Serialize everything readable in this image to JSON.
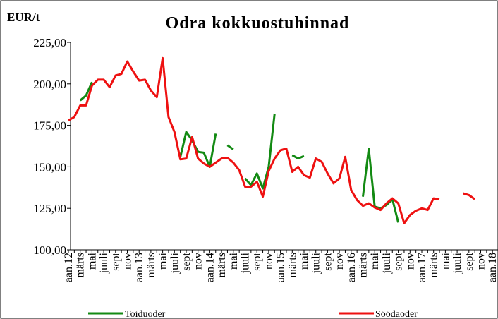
{
  "chart_data": {
    "type": "line",
    "title": "Odra kokkuostuhinnad",
    "y_label": "EUR/t",
    "categories": [
      "aan.12",
      null,
      "märts",
      null,
      "mai",
      null,
      "juuli",
      null,
      "sept",
      null,
      "nov",
      null,
      "aan.13",
      null,
      "märts",
      null,
      "mai",
      null,
      "juuli",
      null,
      "sept",
      null,
      "nov",
      null,
      "aan.14",
      null,
      "märts",
      null,
      "mai",
      null,
      "juuli",
      null,
      "sept",
      null,
      "nov",
      null,
      "aan.15",
      null,
      "märts",
      null,
      "mai",
      null,
      "juuli",
      null,
      "sept",
      null,
      "nov",
      null,
      "aan.16",
      null,
      "märts",
      null,
      "mai",
      null,
      "juuli",
      null,
      "sept",
      null,
      "nov",
      null,
      "aan.17",
      null,
      "märts",
      null,
      "mai",
      null,
      "juuli",
      null,
      "sept",
      null,
      "nov",
      null,
      "aan.18",
      null
    ],
    "series": [
      {
        "name": "Toiduoder",
        "color": "#138a13",
        "values": [
          null,
          null,
          190,
          193,
          201,
          null,
          null,
          null,
          null,
          null,
          null,
          null,
          null,
          null,
          null,
          null,
          null,
          null,
          null,
          156,
          171,
          166,
          159,
          158.5,
          150,
          170,
          null,
          163,
          160.5,
          null,
          143,
          139,
          146,
          137,
          150,
          182,
          null,
          null,
          157,
          155,
          156.5,
          null,
          null,
          null,
          null,
          null,
          null,
          null,
          null,
          null,
          132,
          161,
          126,
          125,
          127,
          130.5,
          116.5,
          null,
          null,
          null,
          null,
          null,
          null,
          null,
          null,
          null,
          null,
          null,
          null,
          null,
          null,
          null,
          null,
          null
        ]
      },
      {
        "name": "Söödaoder",
        "color": "#ee1111",
        "values": [
          178,
          180,
          187,
          187,
          199,
          202.5,
          202.5,
          198,
          205,
          206,
          213.5,
          207.5,
          202,
          202.5,
          196,
          192,
          215.5,
          180,
          171,
          154.5,
          155,
          168,
          155,
          152,
          150,
          152.5,
          155,
          155.5,
          152.5,
          148,
          138,
          138,
          141,
          132,
          147.5,
          155,
          160,
          161,
          147,
          150,
          145,
          143.5,
          155,
          153,
          146,
          140,
          143,
          156,
          136,
          130,
          126.5,
          128,
          125.5,
          124,
          128,
          131,
          128,
          116,
          121,
          123.5,
          125,
          124,
          131,
          130.5,
          null,
          null,
          null,
          134,
          133,
          130.5,
          null,
          null,
          null,
          null
        ]
      }
    ],
    "ylim": [
      100,
      225
    ],
    "yticks": [
      {
        "value": 100,
        "label": "100,00"
      },
      {
        "value": 125,
        "label": "125,00"
      },
      {
        "value": 150,
        "label": "150,00"
      },
      {
        "value": 175,
        "label": "175,00"
      },
      {
        "value": 200,
        "label": "200,00"
      },
      {
        "value": 225,
        "label": "225,00"
      }
    ],
    "grid": false
  }
}
